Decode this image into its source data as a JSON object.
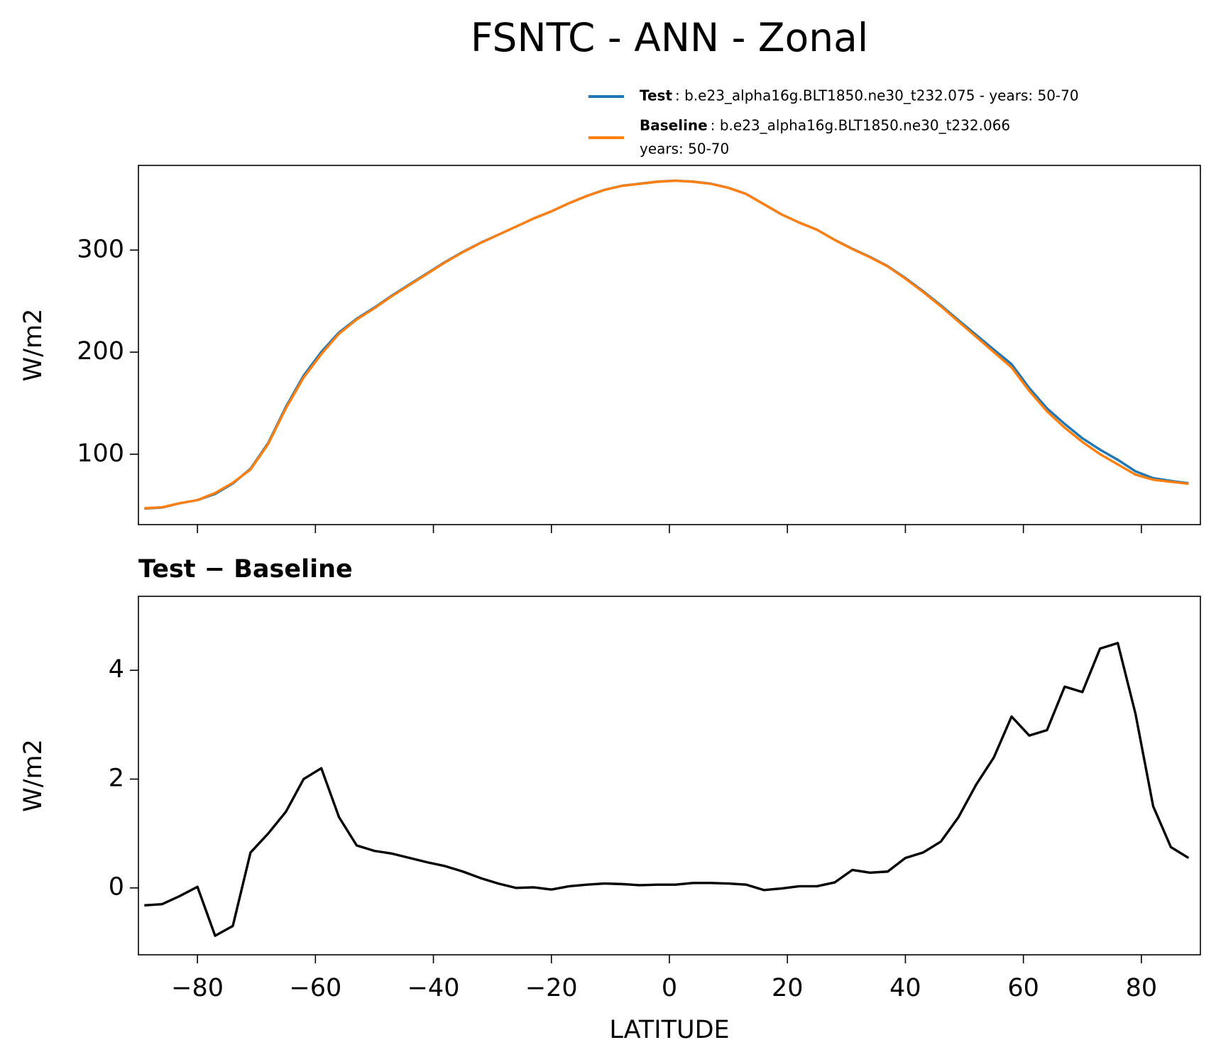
{
  "title": "FSNTC - ANN - Zonal",
  "chart_data": [
    {
      "type": "line",
      "ylabel": "W/m2",
      "x": [
        -89,
        -86,
        -83,
        -80,
        -77,
        -74,
        -71,
        -68,
        -65,
        -62,
        -59,
        -56,
        -53,
        -50,
        -47,
        -44,
        -41,
        -38,
        -35,
        -32,
        -29,
        -26,
        -23,
        -20,
        -17,
        -14,
        -11,
        -8,
        -5,
        -2,
        1,
        4,
        7,
        10,
        13,
        16,
        19,
        22,
        25,
        28,
        31,
        34,
        37,
        40,
        43,
        46,
        49,
        52,
        55,
        58,
        61,
        64,
        67,
        70,
        73,
        76,
        79,
        82,
        85,
        88
      ],
      "series": [
        {
          "name": "Test",
          "legend_text": [
            ": b.e23_alpha16g.BLT1850.ne30_t232.075 - years: 50-70"
          ],
          "color": "#1f77b4",
          "values": [
            46.7,
            47.7,
            51.9,
            55.0,
            61.1,
            71.3,
            85.7,
            111,
            146.4,
            177,
            200.2,
            219.3,
            232.8,
            243.7,
            255.6,
            266.6,
            277.5,
            288.4,
            298.3,
            307.2,
            315.1,
            323,
            331,
            338,
            346,
            353.1,
            359.1,
            363.1,
            365.1,
            367.1,
            368.1,
            367.1,
            365.1,
            361.1,
            355.1,
            345,
            335,
            327,
            320,
            310.1,
            301.3,
            293.3,
            284.3,
            272.6,
            259.7,
            245.9,
            231.3,
            216.9,
            202.4,
            188.2,
            164.8,
            144.9,
            129.7,
            115.6,
            104.4,
            94.5,
            83.2,
            76.5,
            73.8,
            71.6
          ]
        },
        {
          "name": "Baseline",
          "legend_text": [
            ": b.e23_alpha16g.BLT1850.ne30_t232.066",
            "years: 50-70"
          ],
          "color": "#ff7f0e",
          "values": [
            47,
            48,
            52,
            55,
            62,
            72,
            85,
            110,
            145,
            175,
            198,
            218,
            232,
            243,
            255,
            266,
            277,
            288,
            298,
            307,
            315,
            323,
            331,
            338,
            346,
            353,
            359,
            363,
            365,
            367,
            368,
            367,
            365,
            361,
            355,
            345,
            335,
            327,
            320,
            310,
            301,
            293,
            284,
            272,
            259,
            245,
            230,
            215,
            200,
            185,
            162,
            142,
            126,
            112,
            100,
            90,
            80,
            75,
            73,
            71
          ]
        }
      ],
      "xlim": [
        -90,
        90
      ],
      "xticks": [
        {
          "value": -80,
          "label": "−80"
        },
        {
          "value": -60,
          "label": "−60"
        },
        {
          "value": -40,
          "label": "−40"
        },
        {
          "value": -20,
          "label": "−20"
        },
        0,
        20,
        40,
        60,
        80
      ],
      "show_xtick_labels": false,
      "ylim": [
        31,
        383
      ],
      "yticks": [
        100,
        200,
        300
      ]
    },
    {
      "type": "line",
      "title": "Test − Baseline",
      "ylabel": "W/m2",
      "xlabel": "LATITUDE",
      "x": [
        -89,
        -86,
        -83,
        -80,
        -77,
        -74,
        -71,
        -68,
        -65,
        -62,
        -59,
        -56,
        -53,
        -50,
        -47,
        -44,
        -41,
        -38,
        -35,
        -32,
        -29,
        -26,
        -23,
        -20,
        -17,
        -14,
        -11,
        -8,
        -5,
        -2,
        1,
        4,
        7,
        10,
        13,
        16,
        19,
        22,
        25,
        28,
        31,
        34,
        37,
        40,
        43,
        46,
        49,
        52,
        55,
        58,
        61,
        64,
        67,
        70,
        73,
        76,
        79,
        82,
        85,
        88
      ],
      "series": [
        {
          "color": "#000000",
          "values": [
            -0.32,
            -0.3,
            -0.15,
            0.02,
            -0.88,
            -0.7,
            0.65,
            1.0,
            1.4,
            2.0,
            2.2,
            1.3,
            0.78,
            0.68,
            0.63,
            0.55,
            0.47,
            0.4,
            0.3,
            0.18,
            0.08,
            0.0,
            0.01,
            -0.03,
            0.03,
            0.06,
            0.08,
            0.07,
            0.05,
            0.06,
            0.06,
            0.09,
            0.09,
            0.08,
            0.06,
            -0.04,
            -0.01,
            0.03,
            0.03,
            0.1,
            0.33,
            0.28,
            0.3,
            0.55,
            0.65,
            0.85,
            1.3,
            1.9,
            2.4,
            3.15,
            2.8,
            2.9,
            3.7,
            3.6,
            4.4,
            4.5,
            3.2,
            1.5,
            0.75,
            0.55
          ]
        }
      ],
      "xlim": [
        -90,
        90
      ],
      "xticks": [
        {
          "value": -80,
          "label": "−80"
        },
        {
          "value": -60,
          "label": "−60"
        },
        {
          "value": -40,
          "label": "−40"
        },
        {
          "value": -20,
          "label": "−20"
        },
        0,
        20,
        40,
        60,
        80
      ],
      "show_xtick_labels": true,
      "ylim": [
        -1.23,
        5.36
      ],
      "yticks": [
        0,
        2,
        4
      ]
    }
  ]
}
